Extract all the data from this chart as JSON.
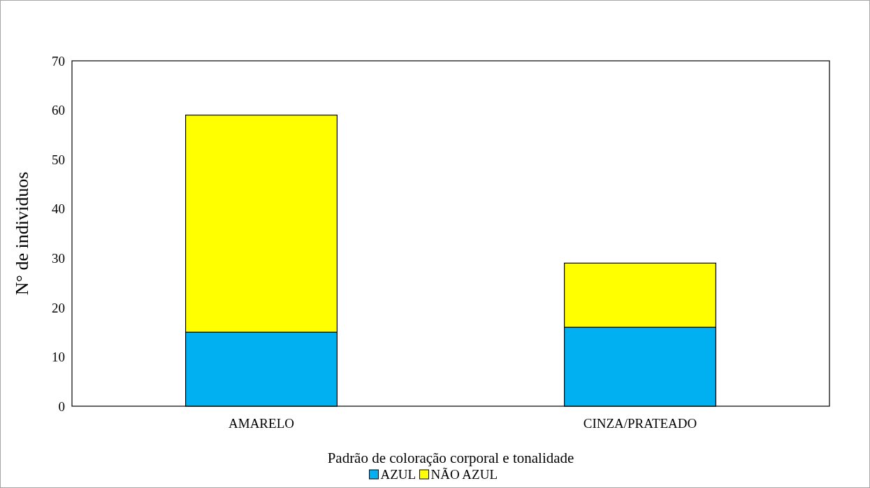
{
  "chart_data": {
    "type": "bar",
    "stacked": true,
    "xlabel": "Padrão de coloração corporal e tonalidade",
    "ylabel": "N° de individuos",
    "categories": [
      "AMARELO",
      "CINZA/PRATEADO"
    ],
    "series": [
      {
        "name": "AZUL",
        "color": "#00b0f0",
        "values": [
          15,
          16
        ]
      },
      {
        "name": "NÃO AZUL",
        "color": "#ffff00",
        "values": [
          44,
          13
        ]
      }
    ],
    "ylim": [
      0,
      70
    ],
    "yticks": [
      0,
      10,
      20,
      30,
      40,
      50,
      60,
      70
    ],
    "grid": false,
    "legend": "bottom"
  }
}
